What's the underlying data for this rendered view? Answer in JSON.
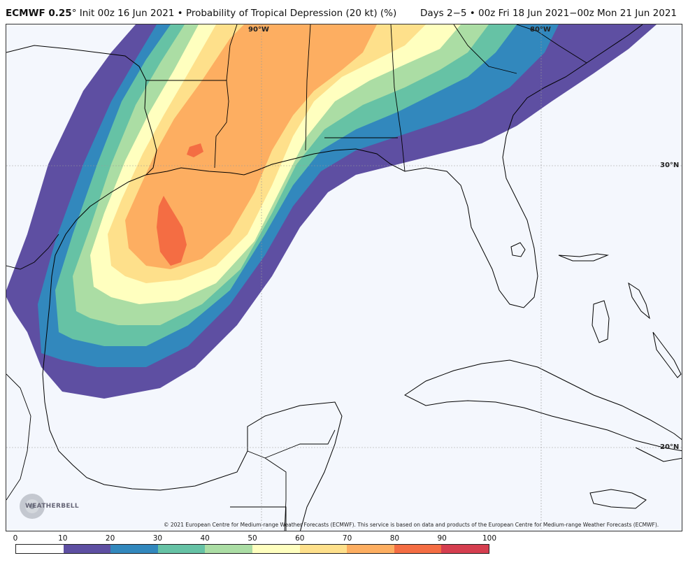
{
  "header": {
    "model": "ECMWF 0.25",
    "degree_sign": "°",
    "init": "Init 00z 16 Jun 2021",
    "bullet": "•",
    "product": "Probability of Tropical Depression (20 kt) (%)",
    "valid": "Days 2−5 • 00z Fri 18 Jun 2021−00z Mon 21 Jun 2021"
  },
  "map": {
    "grid_labels": {
      "lon_90": "90°W",
      "lon_80": "80°W",
      "lat_30": "30°N",
      "lat_20": "20°N"
    },
    "copyright": "© 2021 European Centre for Medium-range Weather Forecasts (ECMWF). This service is based on data and products of the European Centre for Medium-range Weather Forecasts (ECMWF).",
    "logo_text": "WEATHERBELL"
  },
  "legend": {
    "ticks": [
      "0",
      "10",
      "20",
      "30",
      "40",
      "50",
      "60",
      "70",
      "80",
      "90",
      "100"
    ],
    "colors": [
      "#ffffff",
      "#5e4fa2",
      "#3288bd",
      "#66c2a5",
      "#abdda4",
      "#ffffbf",
      "#fee08b",
      "#fdae61",
      "#f46d43",
      "#d53e4f",
      "#9e0142"
    ]
  }
}
